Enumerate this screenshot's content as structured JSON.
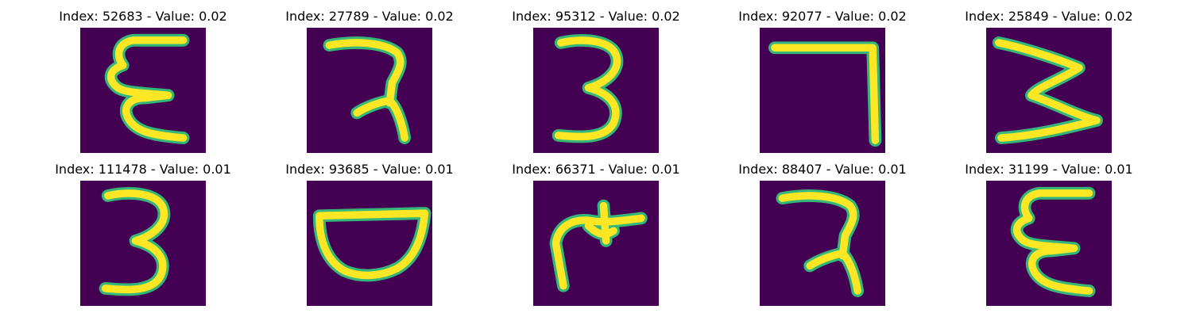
{
  "panels": [
    {
      "title": "Index: 52683 - Value: 0.02",
      "glyph": "glyph-e-shape"
    },
    {
      "title": "Index: 27789 - Value: 0.02",
      "glyph": "glyph-ra-shape"
    },
    {
      "title": "Index: 95312 - Value: 0.02",
      "glyph": "glyph-three"
    },
    {
      "title": "Index: 92077 - Value: 0.02",
      "glyph": "glyph-seven"
    },
    {
      "title": "Index: 25849 - Value: 0.02",
      "glyph": "glyph-m-shape"
    },
    {
      "title": "Index: 111478 - Value: 0.01",
      "glyph": "glyph-three"
    },
    {
      "title": "Index: 93685 - Value: 0.01",
      "glyph": "glyph-bowl-shape"
    },
    {
      "title": "Index: 66371 - Value: 0.01",
      "glyph": "glyph-sprout-shape"
    },
    {
      "title": "Index: 88407 - Value: 0.01",
      "glyph": "glyph-ra-shape"
    },
    {
      "title": "Index: 31199 - Value: 0.01",
      "glyph": "glyph-e-shape"
    }
  ],
  "colors": {
    "background": "#440154",
    "stroke_glow": "#35b779",
    "stroke_core": "#fde725"
  }
}
